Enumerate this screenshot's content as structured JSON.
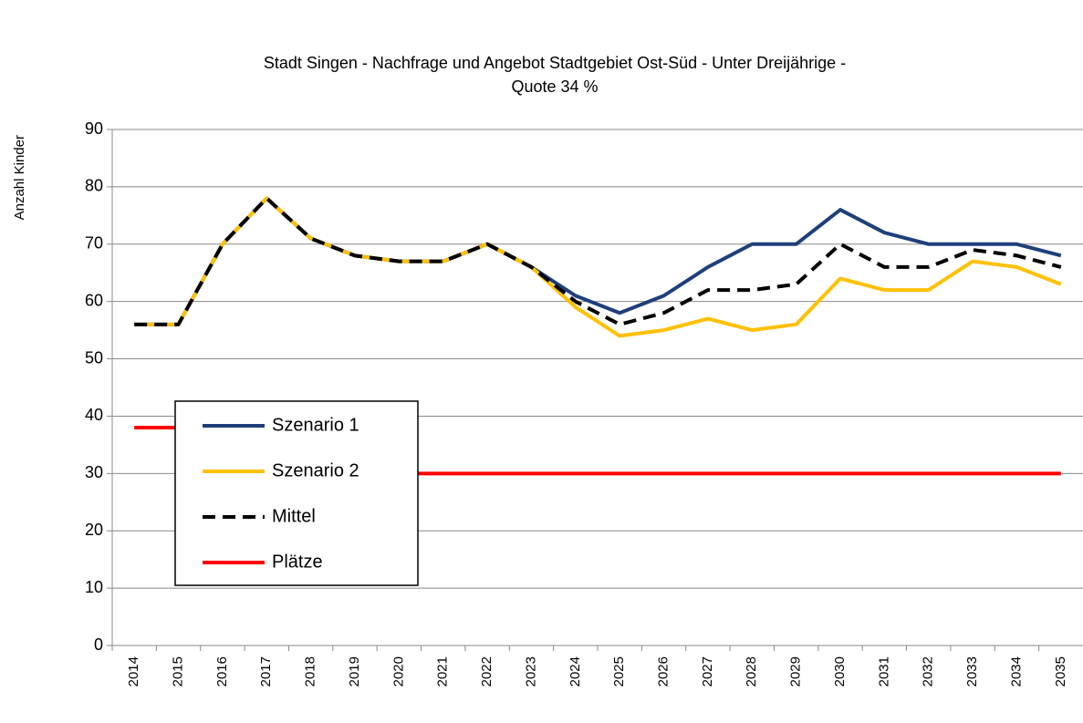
{
  "chart_data": {
    "type": "line",
    "title": [
      "Stadt Singen - Nachfrage und Angebot Stadtgebiet Ost-Süd - Unter Dreijährige -",
      "Quote 34 %"
    ],
    "y_label": "Anzahl Kinder",
    "categories": [
      "2014",
      "2015",
      "2016",
      "2017",
      "2018",
      "2019",
      "2020",
      "2021",
      "2022",
      "2023",
      "2024",
      "2025",
      "2026",
      "2027",
      "2028",
      "2029",
      "2030",
      "2031",
      "2032",
      "2033",
      "2034",
      "2035"
    ],
    "series": [
      {
        "name": "Plätze",
        "color": "#ff0000",
        "dash": false,
        "values": [
          38,
          38,
          30,
          30,
          30,
          30,
          30,
          30,
          30,
          30,
          30,
          30,
          30,
          30,
          30,
          30,
          30,
          30,
          30,
          30,
          30,
          30
        ]
      },
      {
        "name": "Szenario 1",
        "color": "#1f3f7a",
        "dash": false,
        "values": [
          56,
          56,
          70,
          78,
          71,
          68,
          67,
          67,
          70,
          66,
          61,
          58,
          61,
          66,
          70,
          70,
          76,
          72,
          70,
          70,
          70,
          68
        ]
      },
      {
        "name": "Szenario 2",
        "color": "#ffc000",
        "dash": false,
        "values": [
          56,
          56,
          70,
          78,
          71,
          68,
          67,
          67,
          70,
          66,
          59,
          54,
          55,
          57,
          55,
          56,
          64,
          62,
          62,
          67,
          66,
          63
        ]
      },
      {
        "name": "Mittel",
        "color": "#000000",
        "dash": true,
        "values": [
          56,
          56,
          70,
          78,
          71,
          68,
          67,
          67,
          70,
          66,
          60,
          56,
          58,
          62,
          62,
          63,
          70,
          66,
          66,
          69,
          68,
          66
        ]
      }
    ],
    "legend_order": [
      1,
      2,
      3,
      0
    ],
    "ylim": [
      0,
      90
    ],
    "yticks": [
      0,
      10,
      20,
      30,
      40,
      50,
      60,
      70,
      80,
      90
    ],
    "grid": true
  }
}
